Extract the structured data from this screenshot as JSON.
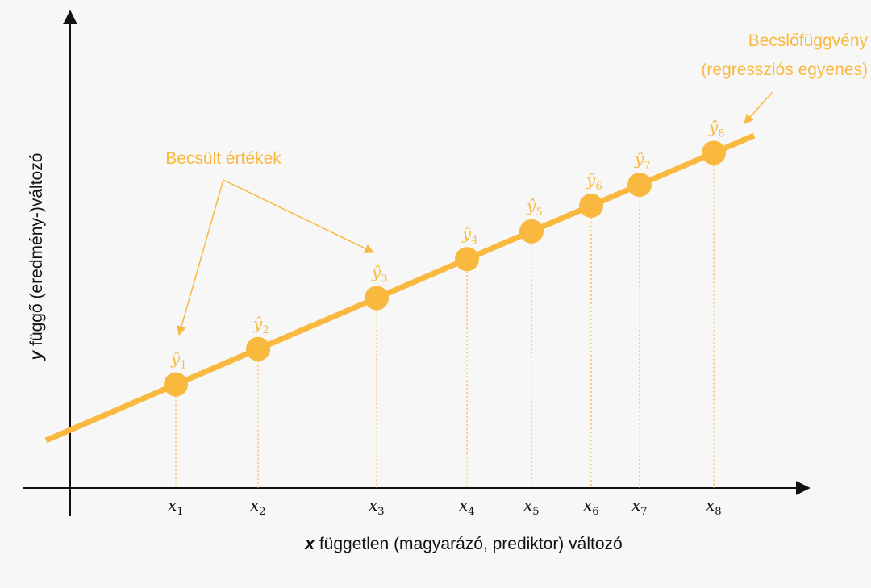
{
  "colors": {
    "accent": "#f9b93f",
    "axis": "#111111",
    "background": "#f7f7f7"
  },
  "labels": {
    "estimated_values": "Becsült értékek",
    "estimator_line_1": "Becslőfüggvény",
    "estimator_line_2": "(regressziós egyenes)"
  },
  "axes": {
    "y_var": "y",
    "y_title": " függő (eredmény-)változó",
    "x_var": "x",
    "x_title": " független (magyarázó, prediktor) változó"
  },
  "points": [
    {
      "x_label": "x",
      "x_sub": "1",
      "y_label": "ŷ",
      "y_sub": "1"
    },
    {
      "x_label": "x",
      "x_sub": "2",
      "y_label": "ŷ",
      "y_sub": "2"
    },
    {
      "x_label": "x",
      "x_sub": "3",
      "y_label": "ŷ",
      "y_sub": "3"
    },
    {
      "x_label": "x",
      "x_sub": "4",
      "y_label": "ŷ",
      "y_sub": "4"
    },
    {
      "x_label": "x",
      "x_sub": "5",
      "y_label": "ŷ",
      "y_sub": "5"
    },
    {
      "x_label": "x",
      "x_sub": "6",
      "y_label": "ŷ",
      "y_sub": "6"
    },
    {
      "x_label": "x",
      "x_sub": "7",
      "y_label": "ŷ",
      "y_sub": "7"
    },
    {
      "x_label": "x",
      "x_sub": "8",
      "y_label": "ŷ",
      "y_sub": "8"
    }
  ]
}
